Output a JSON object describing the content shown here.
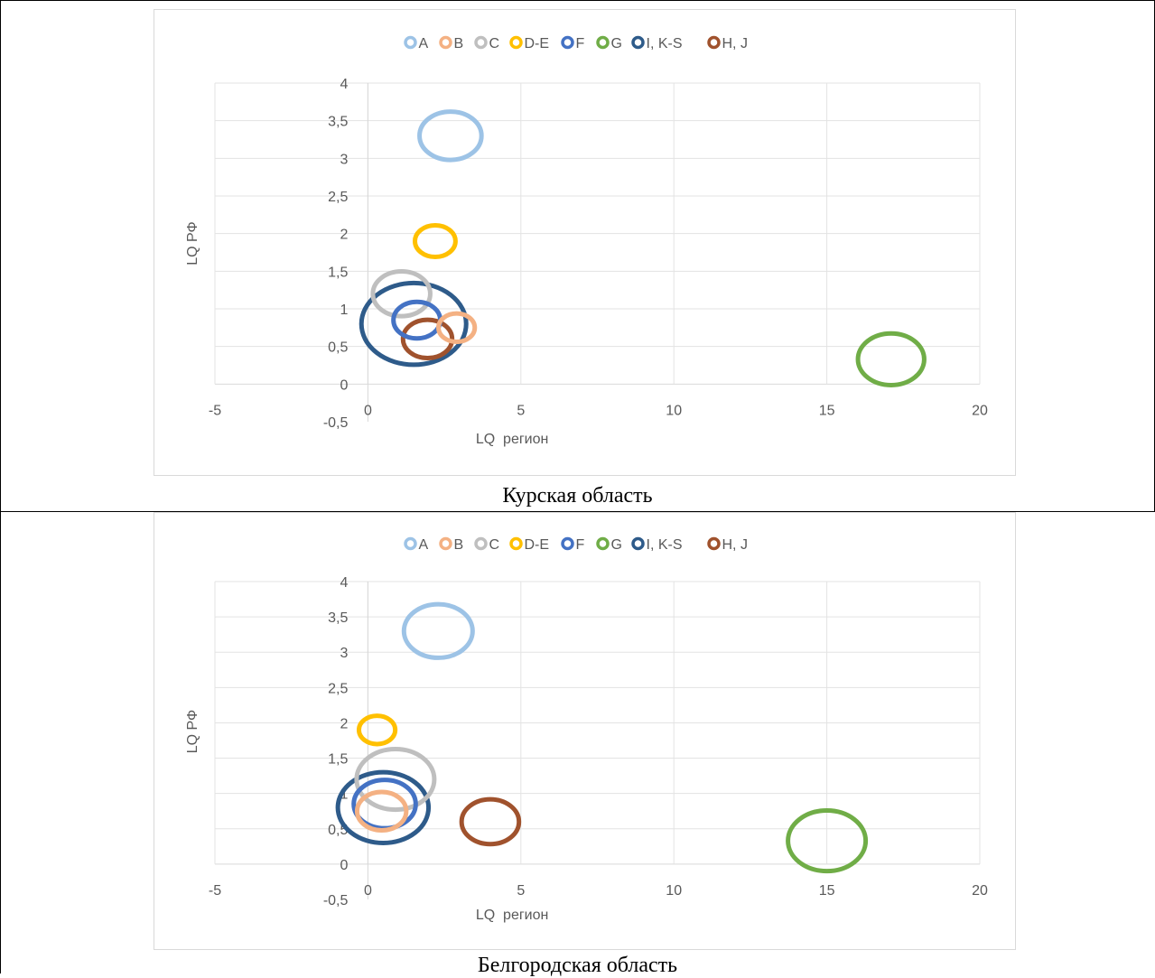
{
  "legend": [
    {
      "label": "A",
      "color": "#9dc3e6"
    },
    {
      "label": "B",
      "color": "#f4b183"
    },
    {
      "label": "C",
      "color": "#bfbfbf"
    },
    {
      "label": "D-E",
      "color": "#ffc000"
    },
    {
      "label": "F",
      "color": "#4472c4"
    },
    {
      "label": "G",
      "color": "#70ad47"
    },
    {
      "label": "I, K-S",
      "color": "#2e5b8a"
    },
    {
      "label": "H, J",
      "color": "#a0522d"
    }
  ],
  "chart_data": [
    {
      "type": "scatter",
      "title": "",
      "caption": "Курская область",
      "xlabel": "LQ  регион",
      "ylabel": "LQ РФ",
      "xlim": [
        -5,
        20
      ],
      "ylim": [
        -0.5,
        4
      ],
      "x_ticks": [
        "-5",
        "0",
        "5",
        "10",
        "15",
        "20"
      ],
      "y_ticks": [
        "-0,5",
        "0",
        "0,5",
        "1",
        "1,5",
        "2",
        "2,5",
        "3",
        "3,5",
        "4"
      ],
      "grid": true,
      "legend_position": "top",
      "series": [
        {
          "name": "A",
          "x": 2.7,
          "y": 3.3,
          "size": 0.35
        },
        {
          "name": "B",
          "x": 2.9,
          "y": 0.75,
          "size": 0.12
        },
        {
          "name": "C",
          "x": 1.1,
          "y": 1.2,
          "size": 0.3
        },
        {
          "name": "D-E",
          "x": 2.2,
          "y": 1.9,
          "size": 0.15
        },
        {
          "name": "F",
          "x": 1.6,
          "y": 0.85,
          "size": 0.2
        },
        {
          "name": "G",
          "x": 17.1,
          "y": 0.33,
          "size": 0.4
        },
        {
          "name": "I, K-S",
          "x": 1.5,
          "y": 0.8,
          "size": 1.0
        },
        {
          "name": "H, J",
          "x": 1.95,
          "y": 0.6,
          "size": 0.22
        }
      ]
    },
    {
      "type": "scatter",
      "title": "",
      "caption": "Белгородская область",
      "xlabel": "LQ  регион",
      "ylabel": "LQ РФ",
      "xlim": [
        -5,
        20
      ],
      "ylim": [
        -0.5,
        4
      ],
      "x_ticks": [
        "-5",
        "0",
        "5",
        "10",
        "15",
        "20"
      ],
      "y_ticks": [
        "-0,5",
        "0",
        "0,5",
        "1",
        "1,5",
        "2",
        "2,5",
        "3",
        "3,5",
        "4"
      ],
      "grid": true,
      "legend_position": "top",
      "series": [
        {
          "name": "A",
          "x": 2.3,
          "y": 3.3,
          "size": 0.43
        },
        {
          "name": "B",
          "x": 0.45,
          "y": 0.75,
          "size": 0.22
        },
        {
          "name": "C",
          "x": 0.9,
          "y": 1.2,
          "size": 0.55
        },
        {
          "name": "D-E",
          "x": 0.3,
          "y": 1.9,
          "size": 0.12
        },
        {
          "name": "F",
          "x": 0.55,
          "y": 0.85,
          "size": 0.35
        },
        {
          "name": "G",
          "x": 15.0,
          "y": 0.33,
          "size": 0.55
        },
        {
          "name": "I, K-S",
          "x": 0.5,
          "y": 0.8,
          "size": 0.75
        },
        {
          "name": "H, J",
          "x": 4.0,
          "y": 0.6,
          "size": 0.3
        }
      ]
    }
  ]
}
